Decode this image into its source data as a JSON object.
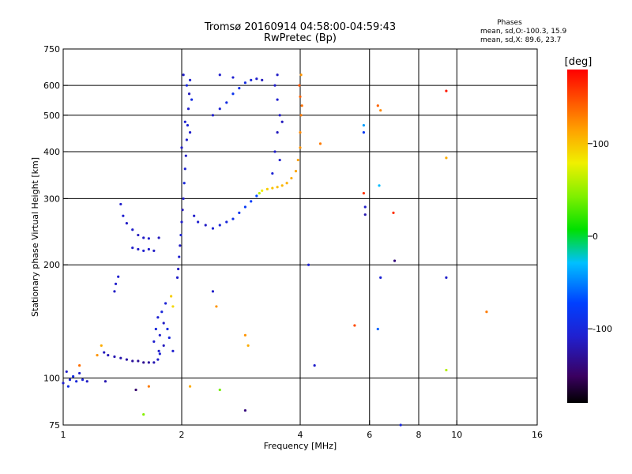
{
  "header": {
    "title_line1": "Tromsø 20160914 04:58:00-04:59:43",
    "title_line2": "RwPretec (Bp)",
    "phases_title": "Phases",
    "phases_o": "mean, sd,O:-100.3, 15.9",
    "phases_x": "mean, sd,X:  89.6, 23.7"
  },
  "colorbar": {
    "unit": "[deg]",
    "ticks": [
      "100",
      "0",
      "-100"
    ],
    "tick_values": [
      100,
      0,
      -100
    ],
    "range": [
      -180,
      180
    ]
  },
  "chart_data": {
    "type": "scatter",
    "xlabel": "Frequency [MHz]",
    "ylabel": "Stationary phase Virtual Height [km]",
    "x_scale": "log",
    "y_scale": "log",
    "xlim": [
      1,
      16
    ],
    "ylim": [
      75,
      750
    ],
    "x_ticks": [
      {
        "value": 1,
        "label": "1"
      },
      {
        "value": 2,
        "label": "2"
      },
      {
        "value": 4,
        "label": "4"
      },
      {
        "value": 6,
        "label": "6"
      },
      {
        "value": 8,
        "label": "8"
      },
      {
        "value": 10,
        "label": "10"
      },
      {
        "value": 16,
        "label": "16"
      }
    ],
    "y_ticks": [
      {
        "value": 75,
        "label": "75"
      },
      {
        "value": 100,
        "label": "100"
      },
      {
        "value": 200,
        "label": "200"
      },
      {
        "value": 300,
        "label": "300"
      },
      {
        "value": 400,
        "label": "400"
      },
      {
        "value": 500,
        "label": "500"
      },
      {
        "value": 600,
        "label": "600"
      },
      {
        "value": 750,
        "label": "750"
      }
    ],
    "grid_x": [
      2,
      4,
      6,
      8,
      10
    ],
    "grid_y": [
      100,
      200,
      300,
      400,
      500,
      600
    ],
    "points": [
      {
        "x": 1.0,
        "y": 97,
        "p": -110
      },
      {
        "x": 1.02,
        "y": 104,
        "p": -110
      },
      {
        "x": 1.04,
        "y": 99,
        "p": -105
      },
      {
        "x": 1.06,
        "y": 101,
        "p": -95
      },
      {
        "x": 1.08,
        "y": 98,
        "p": -100
      },
      {
        "x": 1.1,
        "y": 103,
        "p": -108
      },
      {
        "x": 1.12,
        "y": 99,
        "p": -102
      },
      {
        "x": 1.15,
        "y": 98,
        "p": -112
      },
      {
        "x": 1.03,
        "y": 95,
        "p": -95
      },
      {
        "x": 1.28,
        "y": 98,
        "p": -120
      },
      {
        "x": 1.27,
        "y": 117,
        "p": -115
      },
      {
        "x": 1.3,
        "y": 115,
        "p": -118
      },
      {
        "x": 1.35,
        "y": 114,
        "p": -120
      },
      {
        "x": 1.4,
        "y": 113,
        "p": -122
      },
      {
        "x": 1.45,
        "y": 112,
        "p": -125
      },
      {
        "x": 1.5,
        "y": 111,
        "p": -128
      },
      {
        "x": 1.55,
        "y": 111,
        "p": -130
      },
      {
        "x": 1.6,
        "y": 110,
        "p": -132
      },
      {
        "x": 1.65,
        "y": 110,
        "p": -128
      },
      {
        "x": 1.7,
        "y": 110,
        "p": -120
      },
      {
        "x": 1.74,
        "y": 112,
        "p": -110
      },
      {
        "x": 1.76,
        "y": 116,
        "p": -105
      },
      {
        "x": 1.7,
        "y": 125,
        "p": -108
      },
      {
        "x": 1.72,
        "y": 135,
        "p": -100
      },
      {
        "x": 1.74,
        "y": 145,
        "p": -106
      },
      {
        "x": 1.76,
        "y": 130,
        "p": -110
      },
      {
        "x": 1.78,
        "y": 150,
        "p": -100
      },
      {
        "x": 1.8,
        "y": 140,
        "p": -112
      },
      {
        "x": 1.82,
        "y": 158,
        "p": -105
      },
      {
        "x": 1.8,
        "y": 122,
        "p": -115
      },
      {
        "x": 1.84,
        "y": 135,
        "p": -95
      },
      {
        "x": 1.86,
        "y": 128,
        "p": -100
      },
      {
        "x": 1.9,
        "y": 118,
        "p": -108
      },
      {
        "x": 1.75,
        "y": 118,
        "p": -110
      },
      {
        "x": 1.9,
        "y": 155,
        "p": 90
      },
      {
        "x": 1.88,
        "y": 165,
        "p": 95
      },
      {
        "x": 1.95,
        "y": 185,
        "p": -110
      },
      {
        "x": 1.96,
        "y": 195,
        "p": -115
      },
      {
        "x": 1.97,
        "y": 210,
        "p": -108
      },
      {
        "x": 1.98,
        "y": 225,
        "p": -112
      },
      {
        "x": 1.99,
        "y": 240,
        "p": -105
      },
      {
        "x": 2.0,
        "y": 260,
        "p": -110
      },
      {
        "x": 2.01,
        "y": 280,
        "p": -118
      },
      {
        "x": 2.02,
        "y": 300,
        "p": -110
      },
      {
        "x": 2.03,
        "y": 330,
        "p": -100
      },
      {
        "x": 2.04,
        "y": 360,
        "p": -105
      },
      {
        "x": 2.05,
        "y": 390,
        "p": -112
      },
      {
        "x": 2.06,
        "y": 430,
        "p": -108
      },
      {
        "x": 2.07,
        "y": 470,
        "p": -104
      },
      {
        "x": 2.08,
        "y": 520,
        "p": -110
      },
      {
        "x": 2.09,
        "y": 570,
        "p": -115
      },
      {
        "x": 2.1,
        "y": 620,
        "p": -108
      },
      {
        "x": 2.02,
        "y": 640,
        "p": -110
      },
      {
        "x": 2.06,
        "y": 600,
        "p": -100
      },
      {
        "x": 2.12,
        "y": 550,
        "p": -95
      },
      {
        "x": 2.1,
        "y": 450,
        "p": -110
      },
      {
        "x": 2.0,
        "y": 410,
        "p": -112
      },
      {
        "x": 2.04,
        "y": 480,
        "p": -106
      },
      {
        "x": 2.15,
        "y": 270,
        "p": -110
      },
      {
        "x": 2.2,
        "y": 260,
        "p": -108
      },
      {
        "x": 2.3,
        "y": 255,
        "p": -112
      },
      {
        "x": 2.4,
        "y": 250,
        "p": -105
      },
      {
        "x": 2.5,
        "y": 255,
        "p": -102
      },
      {
        "x": 2.6,
        "y": 260,
        "p": -100
      },
      {
        "x": 2.7,
        "y": 265,
        "p": -90
      },
      {
        "x": 2.8,
        "y": 275,
        "p": -85
      },
      {
        "x": 2.9,
        "y": 285,
        "p": -80
      },
      {
        "x": 3.0,
        "y": 295,
        "p": -75
      },
      {
        "x": 3.1,
        "y": 305,
        "p": -70
      },
      {
        "x": 3.15,
        "y": 310,
        "p": 60
      },
      {
        "x": 3.2,
        "y": 315,
        "p": 80
      },
      {
        "x": 3.3,
        "y": 318,
        "p": 95
      },
      {
        "x": 3.4,
        "y": 320,
        "p": 100
      },
      {
        "x": 3.5,
        "y": 322,
        "p": 102
      },
      {
        "x": 3.6,
        "y": 325,
        "p": 105
      },
      {
        "x": 3.7,
        "y": 330,
        "p": 108
      },
      {
        "x": 3.8,
        "y": 340,
        "p": 110
      },
      {
        "x": 3.9,
        "y": 355,
        "p": 112
      },
      {
        "x": 3.95,
        "y": 380,
        "p": 115
      },
      {
        "x": 4.0,
        "y": 410,
        "p": 120
      },
      {
        "x": 4.0,
        "y": 450,
        "p": 125
      },
      {
        "x": 4.02,
        "y": 500,
        "p": 130
      },
      {
        "x": 4.04,
        "y": 530,
        "p": 135
      },
      {
        "x": 4.0,
        "y": 560,
        "p": 140
      },
      {
        "x": 3.98,
        "y": 600,
        "p": 145
      },
      {
        "x": 4.02,
        "y": 640,
        "p": 120
      },
      {
        "x": 2.4,
        "y": 500,
        "p": -110
      },
      {
        "x": 2.5,
        "y": 520,
        "p": -105
      },
      {
        "x": 2.6,
        "y": 540,
        "p": -95
      },
      {
        "x": 2.7,
        "y": 570,
        "p": -85
      },
      {
        "x": 2.8,
        "y": 590,
        "p": -90
      },
      {
        "x": 2.9,
        "y": 610,
        "p": -95
      },
      {
        "x": 3.0,
        "y": 620,
        "p": -100
      },
      {
        "x": 3.1,
        "y": 625,
        "p": -110
      },
      {
        "x": 3.2,
        "y": 620,
        "p": -115
      },
      {
        "x": 2.5,
        "y": 640,
        "p": -110
      },
      {
        "x": 2.7,
        "y": 630,
        "p": -108
      },
      {
        "x": 3.45,
        "y": 400,
        "p": -110
      },
      {
        "x": 3.5,
        "y": 450,
        "p": -115
      },
      {
        "x": 3.55,
        "y": 500,
        "p": -112
      },
      {
        "x": 3.5,
        "y": 550,
        "p": -108
      },
      {
        "x": 3.45,
        "y": 600,
        "p": -110
      },
      {
        "x": 3.5,
        "y": 640,
        "p": -112
      },
      {
        "x": 3.4,
        "y": 350,
        "p": -105
      },
      {
        "x": 3.6,
        "y": 480,
        "p": -115
      },
      {
        "x": 3.55,
        "y": 380,
        "p": -110
      },
      {
        "x": 1.4,
        "y": 290,
        "p": -110
      },
      {
        "x": 1.42,
        "y": 270,
        "p": -108
      },
      {
        "x": 1.45,
        "y": 258,
        "p": -112
      },
      {
        "x": 1.5,
        "y": 248,
        "p": -110
      },
      {
        "x": 1.55,
        "y": 240,
        "p": -115
      },
      {
        "x": 1.6,
        "y": 236,
        "p": -112
      },
      {
        "x": 1.65,
        "y": 235,
        "p": -110
      },
      {
        "x": 1.5,
        "y": 222,
        "p": -110
      },
      {
        "x": 1.55,
        "y": 220,
        "p": -112
      },
      {
        "x": 1.6,
        "y": 218,
        "p": -108
      },
      {
        "x": 1.65,
        "y": 220,
        "p": -110
      },
      {
        "x": 1.7,
        "y": 218,
        "p": -112
      },
      {
        "x": 1.75,
        "y": 236,
        "p": -115
      },
      {
        "x": 1.35,
        "y": 170,
        "p": -112
      },
      {
        "x": 1.36,
        "y": 178,
        "p": -110
      },
      {
        "x": 1.38,
        "y": 186,
        "p": -108
      },
      {
        "x": 1.6,
        "y": 80,
        "p": 45
      },
      {
        "x": 1.53,
        "y": 93,
        "p": -145
      },
      {
        "x": 1.65,
        "y": 95,
        "p": 130
      },
      {
        "x": 1.25,
        "y": 122,
        "p": 110
      },
      {
        "x": 1.22,
        "y": 115,
        "p": 120
      },
      {
        "x": 1.1,
        "y": 108,
        "p": 135
      },
      {
        "x": 2.1,
        "y": 95,
        "p": 110
      },
      {
        "x": 2.5,
        "y": 93,
        "p": 40
      },
      {
        "x": 2.9,
        "y": 82,
        "p": -140
      },
      {
        "x": 2.4,
        "y": 170,
        "p": -110
      },
      {
        "x": 2.45,
        "y": 155,
        "p": 120
      },
      {
        "x": 2.9,
        "y": 130,
        "p": 120
      },
      {
        "x": 2.95,
        "y": 122,
        "p": 110
      },
      {
        "x": 4.2,
        "y": 200,
        "p": -105
      },
      {
        "x": 4.35,
        "y": 108,
        "p": -110
      },
      {
        "x": 4.5,
        "y": 420,
        "p": 130
      },
      {
        "x": 5.5,
        "y": 138,
        "p": 150
      },
      {
        "x": 5.8,
        "y": 470,
        "p": -40
      },
      {
        "x": 5.8,
        "y": 450,
        "p": -80
      },
      {
        "x": 5.8,
        "y": 310,
        "p": 160
      },
      {
        "x": 5.85,
        "y": 285,
        "p": -110
      },
      {
        "x": 5.85,
        "y": 272,
        "p": -120
      },
      {
        "x": 6.3,
        "y": 530,
        "p": 140
      },
      {
        "x": 6.4,
        "y": 515,
        "p": 125
      },
      {
        "x": 6.35,
        "y": 325,
        "p": -30
      },
      {
        "x": 6.4,
        "y": 185,
        "p": -105
      },
      {
        "x": 6.3,
        "y": 135,
        "p": -60
      },
      {
        "x": 6.9,
        "y": 275,
        "p": 160
      },
      {
        "x": 6.95,
        "y": 205,
        "p": -140
      },
      {
        "x": 7.2,
        "y": 75,
        "p": -100
      },
      {
        "x": 9.4,
        "y": 580,
        "p": 170
      },
      {
        "x": 9.4,
        "y": 385,
        "p": 110
      },
      {
        "x": 9.4,
        "y": 185,
        "p": -110
      },
      {
        "x": 9.4,
        "y": 105,
        "p": 60
      },
      {
        "x": 11.9,
        "y": 150,
        "p": 130
      }
    ]
  }
}
